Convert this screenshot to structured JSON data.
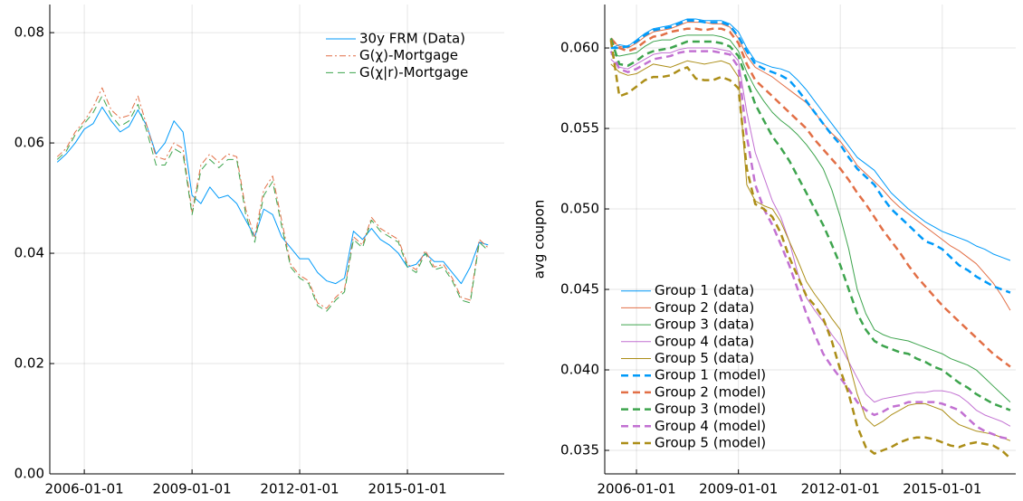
{
  "chart_data": [
    {
      "type": "line",
      "legend": "top right",
      "grid": true,
      "x": [
        "2005-04-01",
        "2005-07-01",
        "2005-10-01",
        "2006-01-01",
        "2006-04-01",
        "2006-07-01",
        "2006-10-01",
        "2007-01-01",
        "2007-04-01",
        "2007-07-01",
        "2007-10-01",
        "2008-01-01",
        "2008-04-01",
        "2008-07-01",
        "2008-10-01",
        "2009-01-01",
        "2009-04-01",
        "2009-07-01",
        "2009-10-01",
        "2010-01-01",
        "2010-04-01",
        "2010-07-01",
        "2010-10-01",
        "2011-01-01",
        "2011-04-01",
        "2011-07-01",
        "2011-10-01",
        "2012-01-01",
        "2012-04-01",
        "2012-07-01",
        "2012-10-01",
        "2013-01-01",
        "2013-04-01",
        "2013-07-01",
        "2013-10-01",
        "2014-01-01",
        "2014-04-01",
        "2014-07-01",
        "2014-10-01",
        "2015-01-01",
        "2015-04-01",
        "2015-07-01",
        "2015-10-01",
        "2016-01-01",
        "2016-04-01",
        "2016-07-01",
        "2016-10-01",
        "2017-01-01",
        "2017-04-01"
      ],
      "xlim": [
        "2005-01-15",
        "2017-09-12"
      ],
      "xticks": [
        "2006-01-01",
        "2009-01-01",
        "2012-01-01",
        "2015-01-01"
      ],
      "ylim": [
        0,
        0.0851
      ],
      "yticks": [
        {
          "value": 0,
          "label": "0.00"
        },
        0.02,
        0.04,
        0.06,
        0.08
      ],
      "series": [
        {
          "name": "30y FRM (Data)",
          "color": "#009af9",
          "linestyle": "solid",
          "linewidth": 1,
          "values": [
            0.0565,
            0.058,
            0.06,
            0.0625,
            0.0635,
            0.0665,
            0.064,
            0.062,
            0.063,
            0.066,
            0.063,
            0.058,
            0.06,
            0.064,
            0.062,
            0.0505,
            0.049,
            0.052,
            0.05,
            0.0505,
            0.049,
            0.046,
            0.043,
            0.048,
            0.047,
            0.043,
            0.041,
            0.039,
            0.039,
            0.0365,
            0.035,
            0.0345,
            0.0355,
            0.044,
            0.0425,
            0.0445,
            0.0425,
            0.0415,
            0.04,
            0.0375,
            0.038,
            0.04,
            0.0385,
            0.0385,
            0.0365,
            0.0345,
            0.0375,
            0.042,
            0.0415
          ]
        },
        {
          "name": "G(χ)-Mortgage",
          "color": "#e26f46",
          "linestyle": "dashdot",
          "linewidth": 1,
          "values": [
            0.0575,
            0.059,
            0.062,
            0.064,
            0.0665,
            0.07,
            0.066,
            0.0645,
            0.065,
            0.0685,
            0.063,
            0.0575,
            0.057,
            0.06,
            0.059,
            0.0475,
            0.056,
            0.058,
            0.0565,
            0.058,
            0.0575,
            0.048,
            0.043,
            0.0515,
            0.054,
            0.046,
            0.038,
            0.036,
            0.035,
            0.031,
            0.03,
            0.032,
            0.0335,
            0.043,
            0.0415,
            0.0465,
            0.0445,
            0.0435,
            0.0425,
            0.038,
            0.037,
            0.0405,
            0.0375,
            0.038,
            0.0355,
            0.032,
            0.0315,
            0.0425,
            0.041
          ]
        },
        {
          "name": "G(χ|r)-Mortgage",
          "color": "#3da44d",
          "linestyle": "dash",
          "linewidth": 1,
          "values": [
            0.057,
            0.0585,
            0.0615,
            0.0635,
            0.0655,
            0.0685,
            0.065,
            0.063,
            0.064,
            0.067,
            0.062,
            0.056,
            0.056,
            0.059,
            0.058,
            0.047,
            0.055,
            0.057,
            0.0555,
            0.057,
            0.057,
            0.047,
            0.042,
            0.0505,
            0.053,
            0.045,
            0.0375,
            0.0355,
            0.0345,
            0.0305,
            0.0295,
            0.0315,
            0.033,
            0.0425,
            0.041,
            0.046,
            0.044,
            0.043,
            0.042,
            0.0375,
            0.0365,
            0.04,
            0.037,
            0.0375,
            0.035,
            0.0315,
            0.031,
            0.042,
            0.0405
          ]
        }
      ]
    },
    {
      "type": "line",
      "legend": "bottom left",
      "grid": true,
      "ylabel": "avg coupon",
      "x": [
        "2005-04-01",
        "2005-07-01",
        "2005-10-01",
        "2006-01-01",
        "2006-04-01",
        "2006-07-01",
        "2006-10-01",
        "2007-01-01",
        "2007-04-01",
        "2007-07-01",
        "2007-10-01",
        "2008-01-01",
        "2008-04-01",
        "2008-07-01",
        "2008-10-01",
        "2009-01-01",
        "2009-04-01",
        "2009-07-01",
        "2009-10-01",
        "2010-01-01",
        "2010-04-01",
        "2010-07-01",
        "2010-10-01",
        "2011-01-01",
        "2011-04-01",
        "2011-07-01",
        "2011-10-01",
        "2012-01-01",
        "2012-04-01",
        "2012-07-01",
        "2012-10-01",
        "2013-01-01",
        "2013-04-01",
        "2013-07-01",
        "2013-10-01",
        "2014-01-01",
        "2014-04-01",
        "2014-07-01",
        "2014-10-01",
        "2015-01-01",
        "2015-04-01",
        "2015-07-01",
        "2015-10-01",
        "2016-01-01",
        "2016-04-01",
        "2016-07-01",
        "2016-10-01",
        "2017-01-01"
      ],
      "xlim": [
        "2005-01-25",
        "2017-03-01"
      ],
      "xticks": [
        "2006-01-01",
        "2009-01-01",
        "2012-01-01",
        "2015-01-01"
      ],
      "ylim": [
        0.03354,
        0.0627
      ],
      "yticks": [
        0.035,
        {
          "value": 0.04,
          "label": "0.040"
        },
        0.045,
        {
          "value": 0.05,
          "label": "0.050"
        },
        0.055,
        {
          "value": 0.06,
          "label": "0.060"
        }
      ],
      "series": [
        {
          "name": "Group 1 (data)",
          "color": "#009af9",
          "linestyle": "solid",
          "linewidth": 1,
          "values": [
            0.06,
            0.0602,
            0.0601,
            0.0605,
            0.0609,
            0.0612,
            0.0613,
            0.0614,
            0.0616,
            0.0618,
            0.0618,
            0.0617,
            0.0617,
            0.0617,
            0.0615,
            0.061,
            0.06,
            0.0592,
            0.059,
            0.0588,
            0.0587,
            0.0585,
            0.058,
            0.0574,
            0.0567,
            0.056,
            0.0553,
            0.0546,
            0.0539,
            0.0532,
            0.0528,
            0.0524,
            0.0517,
            0.051,
            0.0505,
            0.05,
            0.0496,
            0.0492,
            0.0489,
            0.0486,
            0.0484,
            0.0482,
            0.048,
            0.0477,
            0.0475,
            0.0472,
            0.047,
            0.0468
          ]
        },
        {
          "name": "Group 2 (data)",
          "color": "#e26f46",
          "linestyle": "solid",
          "linewidth": 1,
          "values": [
            0.0605,
            0.0601,
            0.06,
            0.0603,
            0.0607,
            0.061,
            0.0611,
            0.0612,
            0.0614,
            0.0616,
            0.0616,
            0.0616,
            0.0615,
            0.0615,
            0.0613,
            0.0606,
            0.0595,
            0.0588,
            0.0585,
            0.0582,
            0.0578,
            0.0574,
            0.057,
            0.0566,
            0.056,
            0.0553,
            0.0547,
            0.0542,
            0.0535,
            0.0527,
            0.0522,
            0.0517,
            0.0512,
            0.0506,
            0.0501,
            0.0497,
            0.0493,
            0.0489,
            0.0485,
            0.0481,
            0.0477,
            0.0474,
            0.047,
            0.0466,
            0.046,
            0.0454,
            0.0446,
            0.0437
          ]
        },
        {
          "name": "Group 3 (data)",
          "color": "#3da44d",
          "linestyle": "solid",
          "linewidth": 1,
          "values": [
            0.0596,
            0.0595,
            0.0596,
            0.0597,
            0.0601,
            0.0604,
            0.0605,
            0.0605,
            0.0607,
            0.0608,
            0.0608,
            0.0608,
            0.0608,
            0.0607,
            0.0605,
            0.0598,
            0.0585,
            0.0575,
            0.0567,
            0.056,
            0.0555,
            0.0551,
            0.0546,
            0.054,
            0.0533,
            0.0525,
            0.0512,
            0.0495,
            0.0475,
            0.045,
            0.0435,
            0.0425,
            0.0422,
            0.042,
            0.0419,
            0.0418,
            0.0416,
            0.0414,
            0.0412,
            0.041,
            0.0407,
            0.0405,
            0.0403,
            0.04,
            0.0395,
            0.039,
            0.0385,
            0.038
          ]
        },
        {
          "name": "Group 4 (data)",
          "color": "#c271d2",
          "linestyle": "solid",
          "linewidth": 1,
          "values": [
            0.0593,
            0.0588,
            0.0587,
            0.059,
            0.0593,
            0.0596,
            0.0597,
            0.0597,
            0.0599,
            0.06,
            0.06,
            0.06,
            0.06,
            0.0599,
            0.0598,
            0.0592,
            0.056,
            0.0535,
            0.052,
            0.0505,
            0.0495,
            0.048,
            0.046,
            0.0445,
            0.0437,
            0.043,
            0.0422,
            0.0415,
            0.0405,
            0.0395,
            0.0385,
            0.038,
            0.0382,
            0.0383,
            0.0384,
            0.0385,
            0.0386,
            0.0386,
            0.0387,
            0.0387,
            0.0386,
            0.0384,
            0.038,
            0.0375,
            0.0372,
            0.037,
            0.0368,
            0.0365
          ]
        },
        {
          "name": "Group 5 (data)",
          "color": "#ac8e18",
          "linestyle": "solid",
          "linewidth": 1,
          "values": [
            0.059,
            0.0585,
            0.0583,
            0.0584,
            0.0587,
            0.059,
            0.0589,
            0.0588,
            0.059,
            0.0592,
            0.0591,
            0.059,
            0.0591,
            0.0592,
            0.059,
            0.0582,
            0.0515,
            0.0505,
            0.0502,
            0.05,
            0.0492,
            0.048,
            0.0468,
            0.0455,
            0.0447,
            0.044,
            0.0432,
            0.0425,
            0.0405,
            0.0385,
            0.037,
            0.0365,
            0.0368,
            0.0372,
            0.0375,
            0.0378,
            0.0379,
            0.0379,
            0.0377,
            0.0375,
            0.037,
            0.0366,
            0.0364,
            0.0362,
            0.0361,
            0.036,
            0.0358,
            0.0356
          ]
        },
        {
          "name": "Group 1 (model)",
          "color": "#009af9",
          "linestyle": "dash",
          "linewidth": 2.5,
          "values": [
            0.06,
            0.06,
            0.0601,
            0.0604,
            0.0608,
            0.0611,
            0.0612,
            0.0613,
            0.0615,
            0.0617,
            0.0617,
            0.0616,
            0.0616,
            0.0616,
            0.0614,
            0.0607,
            0.0598,
            0.059,
            0.0587,
            0.0585,
            0.0583,
            0.058,
            0.0574,
            0.0567,
            0.056,
            0.0553,
            0.0546,
            0.054,
            0.0532,
            0.0525,
            0.052,
            0.0515,
            0.0507,
            0.05,
            0.0495,
            0.049,
            0.0485,
            0.048,
            0.0478,
            0.0475,
            0.047,
            0.0465,
            0.0462,
            0.0458,
            0.0455,
            0.0452,
            0.045,
            0.0448
          ]
        },
        {
          "name": "Group 2 (model)",
          "color": "#e26f46",
          "linestyle": "dash",
          "linewidth": 2.5,
          "values": [
            0.0606,
            0.06,
            0.0598,
            0.06,
            0.0604,
            0.0607,
            0.0608,
            0.061,
            0.0611,
            0.0612,
            0.0612,
            0.0611,
            0.0612,
            0.0612,
            0.061,
            0.0603,
            0.059,
            0.058,
            0.0575,
            0.057,
            0.0565,
            0.056,
            0.0555,
            0.055,
            0.0543,
            0.0537,
            0.0531,
            0.0525,
            0.0518,
            0.051,
            0.0503,
            0.0495,
            0.0487,
            0.048,
            0.0473,
            0.0465,
            0.0458,
            0.0452,
            0.0446,
            0.044,
            0.0435,
            0.043,
            0.0425,
            0.042,
            0.0415,
            0.041,
            0.0406,
            0.0402
          ]
        },
        {
          "name": "Group 3 (model)",
          "color": "#3da44d",
          "linestyle": "dash",
          "linewidth": 2.5,
          "values": [
            0.0606,
            0.059,
            0.0589,
            0.0592,
            0.0596,
            0.0598,
            0.0599,
            0.06,
            0.0602,
            0.0604,
            0.0604,
            0.0604,
            0.0604,
            0.0603,
            0.0601,
            0.0595,
            0.058,
            0.0565,
            0.0555,
            0.0545,
            0.0538,
            0.053,
            0.052,
            0.051,
            0.05,
            0.049,
            0.0478,
            0.0465,
            0.045,
            0.0435,
            0.0425,
            0.0418,
            0.0415,
            0.0413,
            0.0411,
            0.041,
            0.0407,
            0.0405,
            0.0402,
            0.04,
            0.0396,
            0.0392,
            0.0389,
            0.0385,
            0.0382,
            0.0379,
            0.0377,
            0.0375
          ]
        },
        {
          "name": "Group 4 (model)",
          "color": "#c271d2",
          "linestyle": "dash",
          "linewidth": 2.5,
          "values": [
            0.0598,
            0.0587,
            0.0585,
            0.0587,
            0.059,
            0.0593,
            0.0594,
            0.0595,
            0.0597,
            0.0598,
            0.0598,
            0.0598,
            0.0598,
            0.0597,
            0.0596,
            0.0588,
            0.0545,
            0.0515,
            0.05,
            0.049,
            0.0478,
            0.0465,
            0.045,
            0.0435,
            0.0422,
            0.041,
            0.0402,
            0.0395,
            0.0388,
            0.038,
            0.0375,
            0.0372,
            0.0374,
            0.0377,
            0.0378,
            0.038,
            0.038,
            0.038,
            0.038,
            0.0379,
            0.0377,
            0.0375,
            0.037,
            0.0365,
            0.0362,
            0.036,
            0.0358,
            0.0357
          ]
        },
        {
          "name": "Group 5 (model)",
          "color": "#ac8e18",
          "linestyle": "dash",
          "linewidth": 2.5,
          "values": [
            0.0605,
            0.057,
            0.0572,
            0.0576,
            0.058,
            0.0582,
            0.0582,
            0.0583,
            0.0586,
            0.0588,
            0.0581,
            0.058,
            0.058,
            0.0582,
            0.058,
            0.0575,
            0.0525,
            0.0503,
            0.05,
            0.0495,
            0.0485,
            0.047,
            0.0458,
            0.0446,
            0.044,
            0.0432,
            0.0418,
            0.04,
            0.0385,
            0.0365,
            0.0352,
            0.0348,
            0.035,
            0.0352,
            0.0355,
            0.0357,
            0.0358,
            0.0358,
            0.0357,
            0.0355,
            0.0353,
            0.0352,
            0.0354,
            0.0355,
            0.0354,
            0.0353,
            0.035,
            0.0345
          ]
        }
      ]
    }
  ]
}
